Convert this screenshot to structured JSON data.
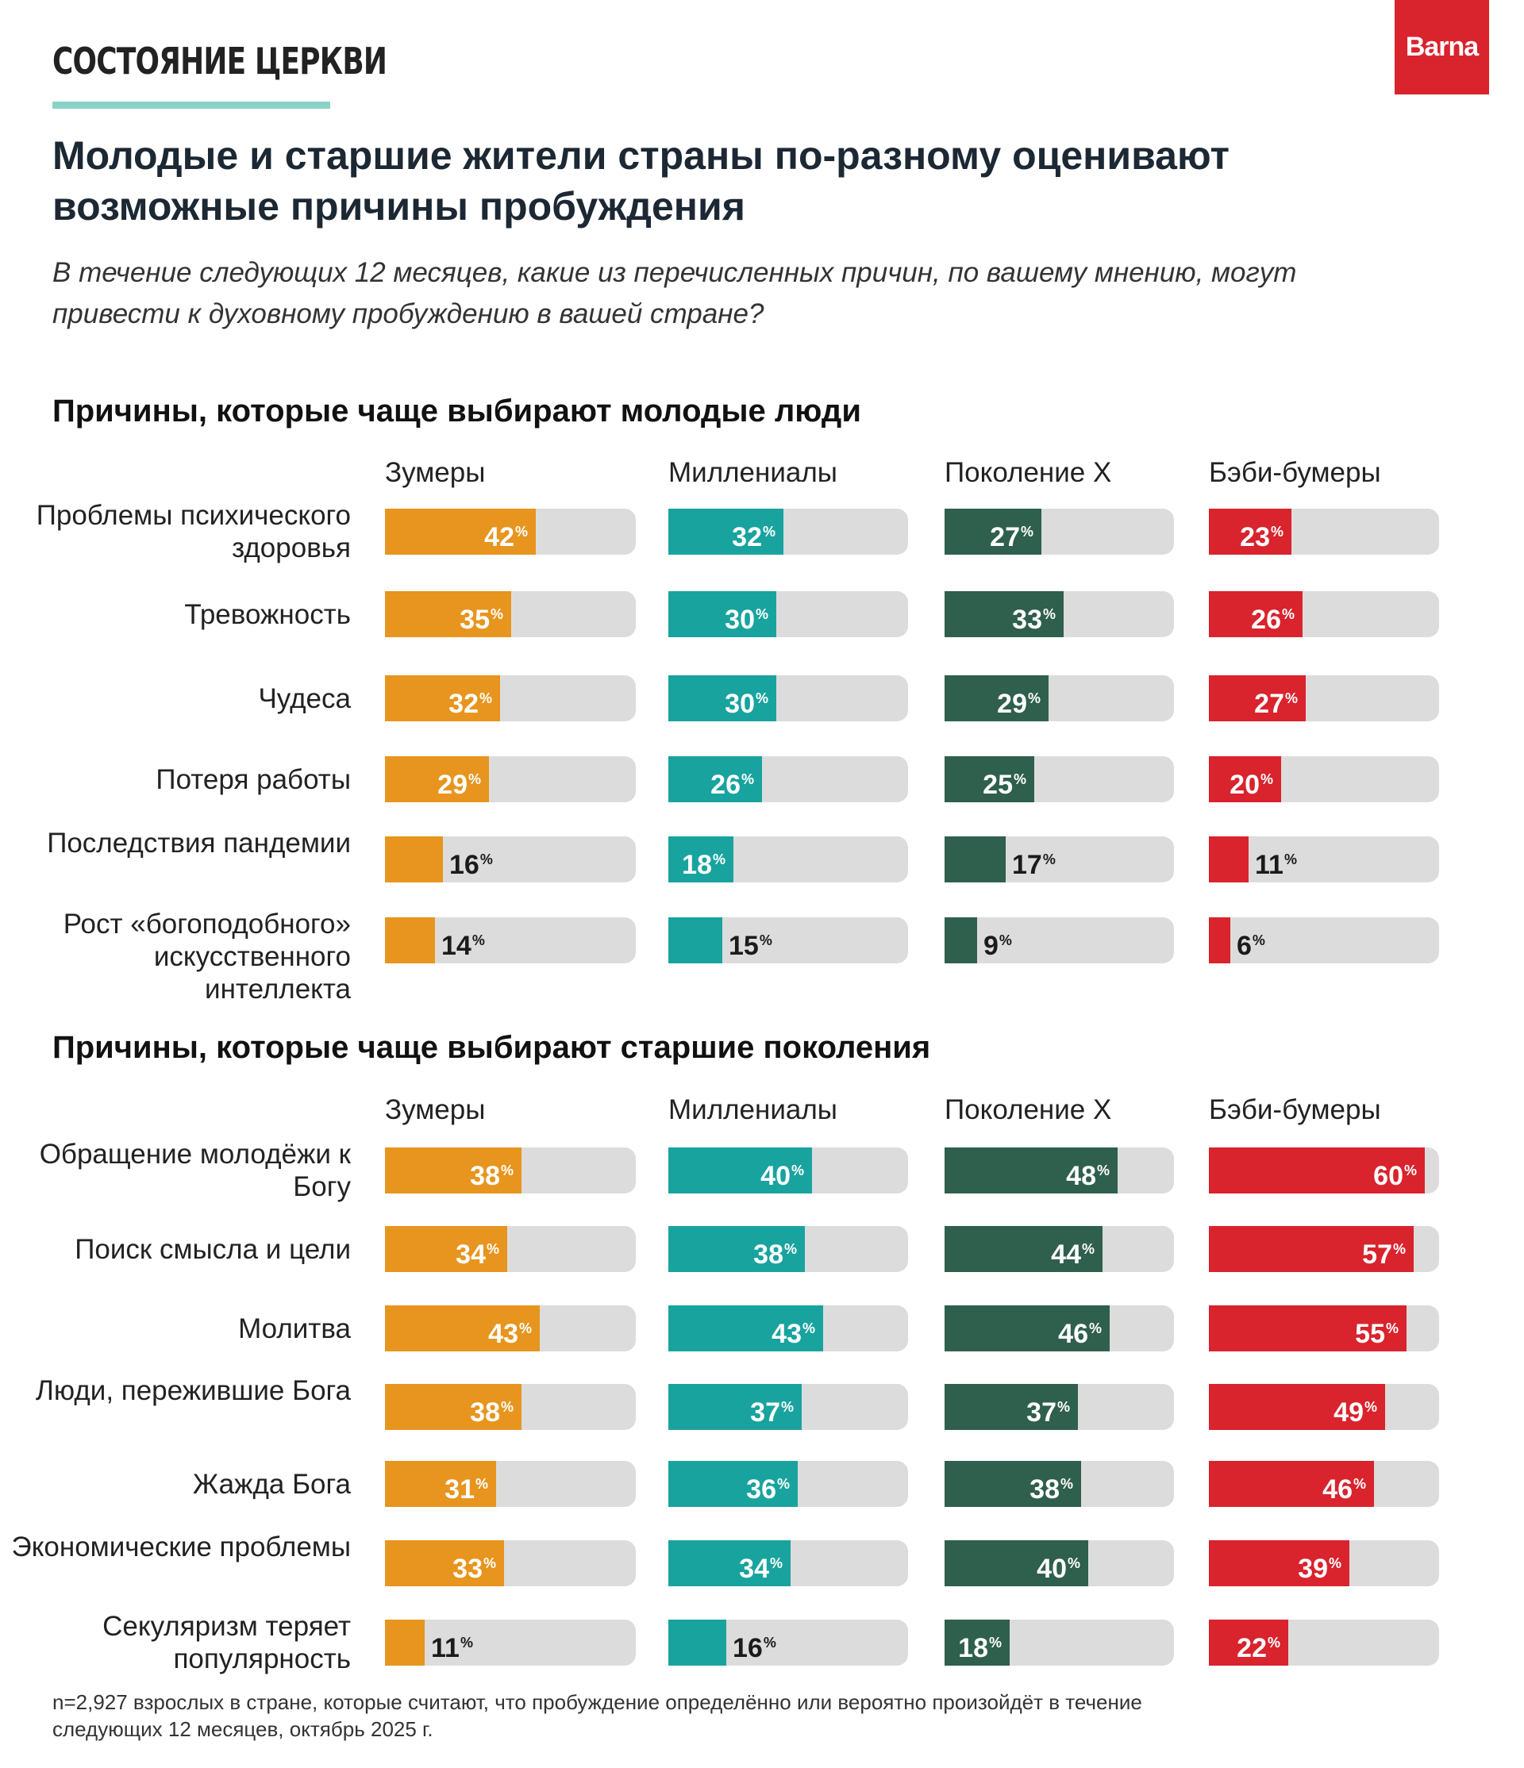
{
  "header": {
    "kicker": "СОСТОЯНИЕ ЦЕРКВИ",
    "logo": "Barna",
    "title": "Молодые и старшие жители страны по-разному оценивают возможные причины пробуждения",
    "question": "В течение следующих 12 месяцев, какие из перечисленных причин, по вашему мнению, могут привести к духовному пробуждению в вашей стране?"
  },
  "colors": {
    "Зумеры": "#e7951e",
    "Миллениалы": "#19a39f",
    "Поколение X": "#2f5f4d",
    "Бэби-бумеры": "#d9232d",
    "track": "#dcdcdc"
  },
  "footnote": "n=2,927 взрослых в стране, которые считают, что пробуждение определённо или вероятно произойдёт в течение следующих 12 месяцев, октябрь 2025 г.",
  "chart_data": [
    {
      "type": "bar",
      "title": "Причины, которые чаще выбирают молодые люди",
      "categories": [
        "Проблемы психического здоровья",
        "Тревожность",
        "Чудеса",
        "Потеря работы",
        "Последствия пандемии",
        "Рост «богоподобного» искусственного интеллекта"
      ],
      "series": [
        {
          "name": "Зумеры",
          "values": [
            42,
            35,
            32,
            29,
            16,
            14
          ]
        },
        {
          "name": "Миллениалы",
          "values": [
            32,
            30,
            30,
            26,
            18,
            15
          ]
        },
        {
          "name": "Поколение X",
          "values": [
            27,
            33,
            29,
            25,
            17,
            9
          ]
        },
        {
          "name": "Бэби-бумеры",
          "values": [
            23,
            26,
            27,
            20,
            11,
            6
          ]
        }
      ],
      "unit": "%",
      "xlim": [
        0,
        64
      ]
    },
    {
      "type": "bar",
      "title": "Причины, которые чаще выбирают старшие поколения",
      "categories": [
        "Обращение молодёжи к Богу",
        "Поиск смысла и цели",
        "Молитва",
        "Люди, пережившие Бога",
        "Жажда Бога",
        "Экономические проблемы",
        "Секуляризм теряет популярность"
      ],
      "series": [
        {
          "name": "Зумеры",
          "values": [
            38,
            34,
            43,
            38,
            31,
            33,
            11
          ]
        },
        {
          "name": "Миллениалы",
          "values": [
            40,
            38,
            43,
            37,
            36,
            34,
            16
          ]
        },
        {
          "name": "Поколение X",
          "values": [
            48,
            44,
            46,
            37,
            38,
            40,
            18
          ]
        },
        {
          "name": "Бэби-бумеры",
          "values": [
            60,
            57,
            55,
            49,
            46,
            39,
            22
          ]
        }
      ],
      "unit": "%",
      "xlim": [
        0,
        64
      ]
    }
  ]
}
